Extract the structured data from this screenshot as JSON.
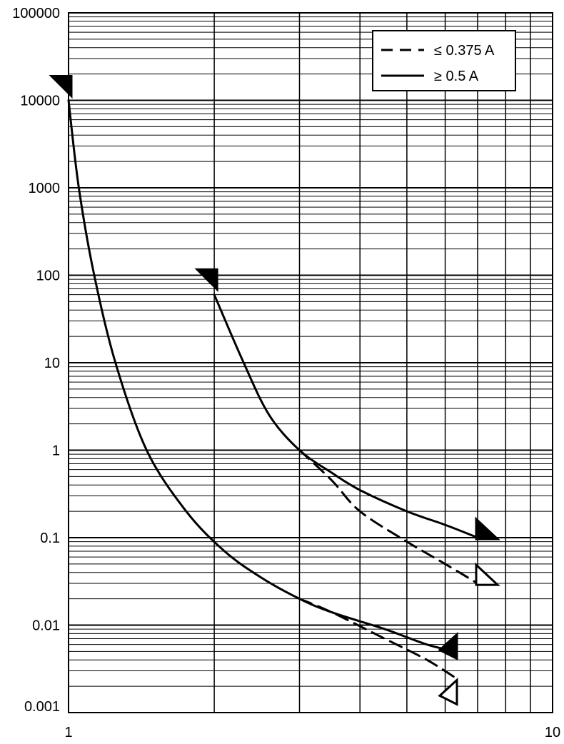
{
  "chart_data": {
    "type": "line",
    "title": "",
    "xlabel": "",
    "ylabel": "",
    "xscale": "log",
    "yscale": "log",
    "xlim": [
      1,
      10
    ],
    "ylim": [
      0.001,
      100000
    ],
    "grid": true,
    "legend_position": "top-right",
    "x_tick_labels": [
      {
        "value": 1,
        "label": "1"
      },
      {
        "value": 10,
        "label": "10"
      }
    ],
    "y_tick_labels": [
      {
        "value": 100000,
        "label": "100000"
      },
      {
        "value": 10000,
        "label": "10000"
      },
      {
        "value": 1000,
        "label": "1000"
      },
      {
        "value": 100,
        "label": "100"
      },
      {
        "value": 10,
        "label": "10"
      },
      {
        "value": 1,
        "label": "1"
      },
      {
        "value": 0.1,
        "label": "0.1"
      },
      {
        "value": 0.01,
        "label": "0.01"
      },
      {
        "value": 0.001,
        "label": "0.001"
      }
    ],
    "legend": [
      {
        "label": "≤ 0.375 A",
        "style": "dashed"
      },
      {
        "label": "≥ 0.5 A",
        "style": "solid"
      }
    ],
    "series": [
      {
        "style": "solid",
        "points": [
          [
            1.0,
            10000
          ],
          [
            1.05,
            1000
          ],
          [
            1.13,
            100
          ],
          [
            1.25,
            10
          ],
          [
            1.45,
            1
          ],
          [
            1.75,
            0.2
          ],
          [
            2.1,
            0.07
          ],
          [
            2.5,
            0.035
          ],
          [
            3.0,
            0.02
          ],
          [
            3.5,
            0.014
          ],
          [
            4.5,
            0.009
          ],
          [
            5.5,
            0.006
          ],
          [
            6.3,
            0.005
          ]
        ]
      },
      {
        "style": "dashed",
        "points": [
          [
            3.0,
            0.02
          ],
          [
            3.5,
            0.014
          ],
          [
            4.5,
            0.007
          ],
          [
            5.5,
            0.004
          ],
          [
            6.3,
            0.0025
          ]
        ]
      },
      {
        "style": "solid",
        "points": [
          [
            2.0,
            60
          ],
          [
            2.3,
            10
          ],
          [
            2.6,
            2.5
          ],
          [
            3.0,
            1.0
          ],
          [
            3.5,
            0.55
          ],
          [
            4.0,
            0.35
          ],
          [
            5.0,
            0.2
          ],
          [
            6.0,
            0.14
          ],
          [
            7.0,
            0.1
          ]
        ]
      },
      {
        "style": "dashed",
        "points": [
          [
            3.0,
            1.0
          ],
          [
            3.5,
            0.45
          ],
          [
            4.0,
            0.2
          ],
          [
            5.0,
            0.09
          ],
          [
            6.0,
            0.05
          ],
          [
            7.0,
            0.03
          ]
        ]
      }
    ],
    "markers": [
      {
        "x": 1.0,
        "y": 13000,
        "style": "filled",
        "dir": "left"
      },
      {
        "x": 2.0,
        "y": 80,
        "style": "filled",
        "dir": "left"
      },
      {
        "x": 7.0,
        "y": 0.1,
        "style": "filled",
        "dir": "right"
      },
      {
        "x": 7.0,
        "y": 0.03,
        "style": "open",
        "dir": "right"
      },
      {
        "x": 6.3,
        "y": 0.005,
        "style": "filled",
        "dir": "up"
      },
      {
        "x": 6.3,
        "y": 0.0015,
        "style": "open",
        "dir": "up"
      }
    ]
  }
}
